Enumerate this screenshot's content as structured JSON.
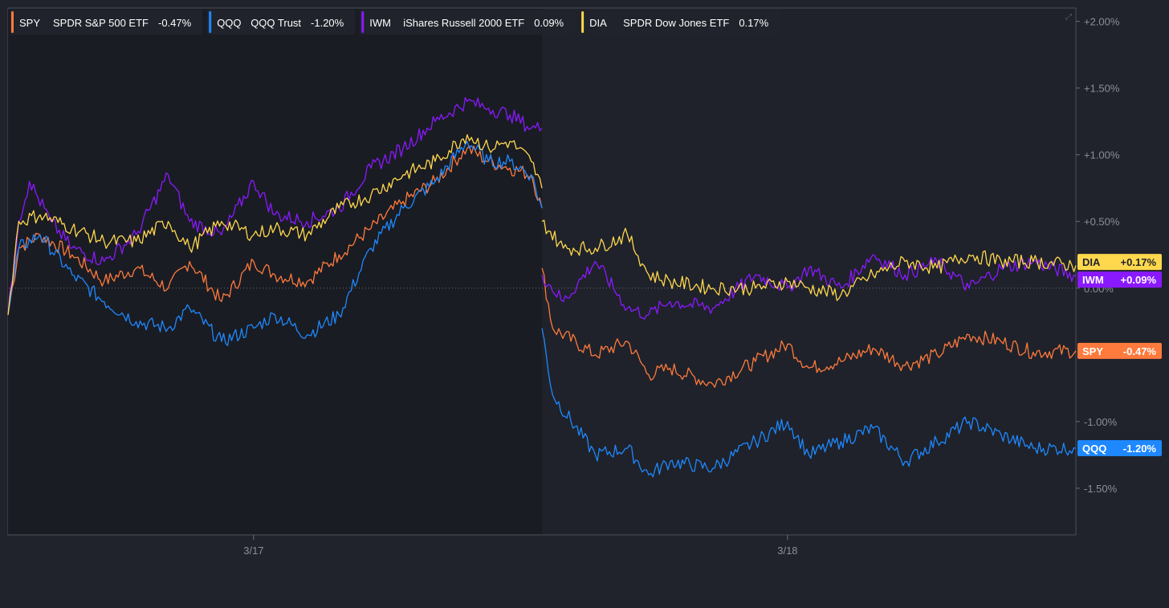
{
  "chart_data": {
    "type": "line",
    "title": "",
    "xlabel": "",
    "ylabel": "",
    "x_ticks": [
      "3/17",
      "3/18"
    ],
    "x_tick_positions": [
      0.23,
      0.73
    ],
    "session_break": 0.5,
    "ylim": [
      -1.85,
      2.1
    ],
    "y_ticks": [
      {
        "value": 2.0,
        "label": "+2.00%"
      },
      {
        "value": 1.5,
        "label": "+1.50%"
      },
      {
        "value": 1.0,
        "label": "+1.00%"
      },
      {
        "value": 0.5,
        "label": "+0.50%"
      },
      {
        "value": 0.0,
        "label": "0.00%"
      },
      {
        "value": -1.0,
        "label": "-1.00%"
      },
      {
        "value": -1.5,
        "label": "-1.50%"
      }
    ],
    "legend_position": "top-left",
    "series": [
      {
        "ticker": "SPY",
        "name": "SPDR S&P 500 ETF",
        "change": "-0.47%",
        "end_label": "-0.47%",
        "color": "#ff7a3d",
        "x": [
          0,
          0.01,
          0.03,
          0.06,
          0.09,
          0.12,
          0.15,
          0.17,
          0.2,
          0.23,
          0.25,
          0.28,
          0.31,
          0.34,
          0.37,
          0.4,
          0.43,
          0.45,
          0.47,
          0.49,
          0.5,
          0.5,
          0.51,
          0.55,
          0.58,
          0.6,
          0.62,
          0.66,
          0.7,
          0.73,
          0.75,
          0.78,
          0.81,
          0.84,
          0.87,
          0.9,
          0.93,
          0.96,
          1.0
        ],
        "values": [
          -0.2,
          0.3,
          0.4,
          0.25,
          0.05,
          0.15,
          0.0,
          0.2,
          -0.1,
          0.2,
          0.1,
          0.05,
          0.25,
          0.45,
          0.65,
          0.8,
          1.05,
          0.95,
          0.9,
          0.85,
          0.6,
          0.15,
          -0.3,
          -0.5,
          -0.4,
          -0.65,
          -0.6,
          -0.72,
          -0.55,
          -0.42,
          -0.6,
          -0.55,
          -0.45,
          -0.58,
          -0.5,
          -0.35,
          -0.4,
          -0.48,
          -0.47
        ]
      },
      {
        "ticker": "QQQ",
        "name": "QQQ Trust",
        "change": "-1.20%",
        "end_label": "-1.20%",
        "color": "#1e88ff",
        "x": [
          0,
          0.01,
          0.03,
          0.06,
          0.09,
          0.12,
          0.15,
          0.17,
          0.2,
          0.23,
          0.25,
          0.28,
          0.31,
          0.34,
          0.37,
          0.4,
          0.43,
          0.45,
          0.47,
          0.49,
          0.5,
          0.5,
          0.51,
          0.55,
          0.58,
          0.6,
          0.62,
          0.66,
          0.7,
          0.73,
          0.75,
          0.78,
          0.81,
          0.84,
          0.87,
          0.9,
          0.93,
          0.96,
          1.0
        ],
        "values": [
          -0.2,
          0.3,
          0.4,
          0.1,
          -0.1,
          -0.25,
          -0.3,
          -0.15,
          -0.4,
          -0.3,
          -0.2,
          -0.35,
          -0.2,
          0.3,
          0.6,
          0.8,
          1.1,
          0.95,
          0.95,
          0.85,
          0.6,
          -0.3,
          -0.8,
          -1.25,
          -1.2,
          -1.4,
          -1.3,
          -1.35,
          -1.15,
          -1.0,
          -1.25,
          -1.15,
          -1.05,
          -1.3,
          -1.15,
          -1.0,
          -1.1,
          -1.2,
          -1.2
        ]
      },
      {
        "ticker": "IWM",
        "name": "iShares Russell 2000 ETF",
        "change": "0.09%",
        "end_label": "+0.09%",
        "color": "#8a19ff",
        "x": [
          0,
          0.01,
          0.02,
          0.04,
          0.06,
          0.09,
          0.12,
          0.15,
          0.17,
          0.2,
          0.23,
          0.25,
          0.28,
          0.31,
          0.34,
          0.37,
          0.4,
          0.43,
          0.45,
          0.47,
          0.49,
          0.5,
          0.5,
          0.52,
          0.55,
          0.58,
          0.6,
          0.62,
          0.66,
          0.7,
          0.73,
          0.75,
          0.78,
          0.81,
          0.84,
          0.87,
          0.9,
          0.93,
          0.96,
          1.0
        ],
        "values": [
          -0.2,
          0.5,
          0.8,
          0.5,
          0.3,
          0.2,
          0.4,
          0.85,
          0.5,
          0.4,
          0.8,
          0.55,
          0.5,
          0.6,
          0.9,
          1.05,
          1.25,
          1.4,
          1.35,
          1.3,
          1.2,
          1.2,
          0.1,
          -0.1,
          0.2,
          -0.15,
          -0.2,
          -0.1,
          -0.15,
          0.1,
          0.0,
          0.15,
          0.0,
          0.25,
          0.1,
          0.2,
          0.0,
          0.15,
          0.2,
          0.09
        ]
      },
      {
        "ticker": "DIA",
        "name": "SPDR Dow Jones ETF",
        "change": "0.17%",
        "end_label": "+0.17%",
        "color": "#ffd84d",
        "x": [
          0,
          0.01,
          0.03,
          0.06,
          0.09,
          0.12,
          0.15,
          0.17,
          0.2,
          0.23,
          0.25,
          0.28,
          0.31,
          0.34,
          0.37,
          0.4,
          0.43,
          0.45,
          0.47,
          0.49,
          0.5,
          0.5,
          0.52,
          0.55,
          0.58,
          0.6,
          0.62,
          0.66,
          0.7,
          0.73,
          0.75,
          0.78,
          0.81,
          0.84,
          0.87,
          0.9,
          0.93,
          0.96,
          1.0
        ],
        "values": [
          -0.2,
          0.5,
          0.55,
          0.45,
          0.35,
          0.35,
          0.5,
          0.3,
          0.5,
          0.4,
          0.45,
          0.4,
          0.6,
          0.7,
          0.85,
          0.95,
          1.15,
          1.05,
          1.1,
          0.95,
          0.75,
          0.5,
          0.3,
          0.3,
          0.4,
          0.1,
          0.05,
          0.0,
          0.0,
          0.05,
          0.0,
          -0.05,
          0.1,
          0.2,
          0.15,
          0.25,
          0.2,
          0.2,
          0.17
        ]
      }
    ]
  }
}
